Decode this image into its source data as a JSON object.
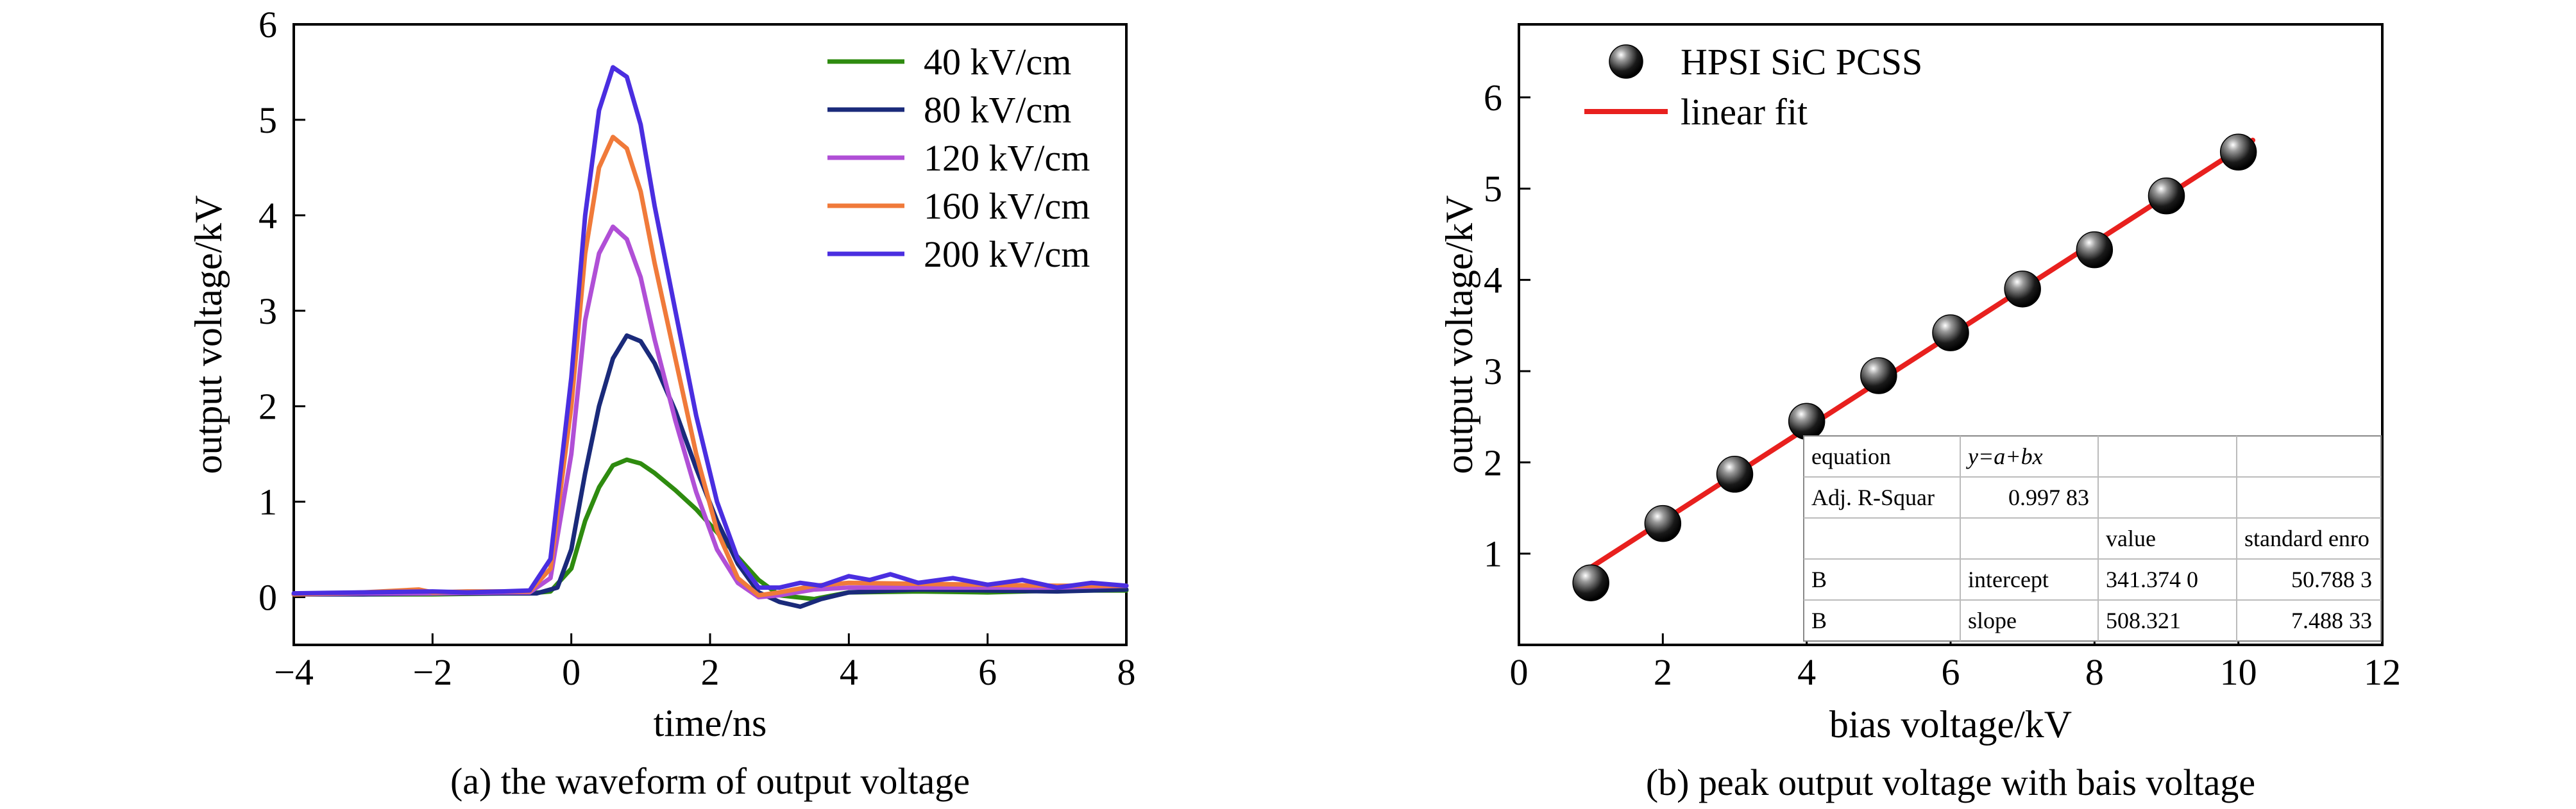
{
  "chart_data": [
    {
      "type": "line",
      "caption": "(a) the waveform of output voltage",
      "xlabel": "time/ns",
      "ylabel": "output voltage/kV",
      "xlim": [
        -4,
        8
      ],
      "ylim": [
        -0.5,
        6
      ],
      "xticks": [
        "−4",
        "−2",
        "0",
        "2",
        "4",
        "6",
        "8"
      ],
      "yticks": [
        "0",
        "1",
        "2",
        "3",
        "4",
        "5",
        "6"
      ],
      "xtick_values": [
        -4,
        -2,
        0,
        2,
        4,
        6,
        8
      ],
      "ytick_values": [
        0,
        1,
        2,
        3,
        4,
        5,
        6
      ],
      "grid": false,
      "legend_position": "top-right",
      "series": [
        {
          "name": "40 kV/cm",
          "color": "#2e8b0f",
          "x": [
            -4,
            -3,
            -2,
            -1,
            -0.6,
            -0.3,
            0,
            0.2,
            0.4,
            0.6,
            0.8,
            1.0,
            1.2,
            1.5,
            1.8,
            2.1,
            2.4,
            2.7,
            3.0,
            3.5,
            4,
            5,
            6,
            7,
            8
          ],
          "y": [
            0.03,
            0.03,
            0.03,
            0.04,
            0.04,
            0.06,
            0.3,
            0.8,
            1.15,
            1.38,
            1.44,
            1.4,
            1.3,
            1.12,
            0.92,
            0.68,
            0.42,
            0.18,
            0.02,
            -0.02,
            0.05,
            0.06,
            0.05,
            0.07,
            0.07
          ]
        },
        {
          "name": "80 kV/cm",
          "color": "#1a2a7a",
          "x": [
            -4,
            -3,
            -2,
            -1,
            -0.5,
            -0.2,
            0,
            0.2,
            0.4,
            0.6,
            0.8,
            1.0,
            1.2,
            1.5,
            1.8,
            2.1,
            2.4,
            2.7,
            3.0,
            3.3,
            3.6,
            4,
            5,
            6,
            7,
            8
          ],
          "y": [
            0.03,
            0.03,
            0.04,
            0.04,
            0.04,
            0.1,
            0.5,
            1.3,
            2.0,
            2.5,
            2.74,
            2.68,
            2.45,
            1.95,
            1.35,
            0.8,
            0.35,
            0.05,
            -0.05,
            -0.1,
            -0.02,
            0.05,
            0.08,
            0.07,
            0.06,
            0.08
          ]
        },
        {
          "name": "120 kV/cm",
          "color": "#b04fd6",
          "x": [
            -4,
            -3,
            -2,
            -1,
            -0.6,
            -0.3,
            0,
            0.2,
            0.4,
            0.6,
            0.8,
            1.0,
            1.2,
            1.5,
            1.8,
            2.1,
            2.4,
            2.7,
            3.0,
            3.5,
            4,
            5,
            6,
            7,
            8
          ],
          "y": [
            0.03,
            0.04,
            0.04,
            0.05,
            0.05,
            0.2,
            1.5,
            2.9,
            3.6,
            3.88,
            3.75,
            3.35,
            2.7,
            1.85,
            1.1,
            0.5,
            0.15,
            0.0,
            0.02,
            0.08,
            0.1,
            0.1,
            0.1,
            0.1,
            0.12
          ]
        },
        {
          "name": "160 kV/cm",
          "color": "#f07a3a",
          "x": [
            -4,
            -3,
            -2.2,
            -2,
            -1.5,
            -1,
            -0.6,
            -0.3,
            0,
            0.2,
            0.4,
            0.6,
            0.8,
            1.0,
            1.2,
            1.5,
            1.8,
            2.1,
            2.4,
            2.7,
            3.0,
            3.5,
            4,
            5,
            6,
            7,
            8
          ],
          "y": [
            0.03,
            0.05,
            0.08,
            0.05,
            0.06,
            0.06,
            0.06,
            0.3,
            2.0,
            3.6,
            4.5,
            4.82,
            4.7,
            4.25,
            3.5,
            2.5,
            1.5,
            0.7,
            0.2,
            0.02,
            0.05,
            0.12,
            0.15,
            0.14,
            0.13,
            0.12,
            0.12
          ]
        },
        {
          "name": "200 kV/cm",
          "color": "#4a2ee0",
          "x": [
            -4,
            -3,
            -2,
            -1.5,
            -1,
            -0.6,
            -0.3,
            0,
            0.2,
            0.4,
            0.6,
            0.8,
            1.0,
            1.2,
            1.5,
            1.8,
            2.1,
            2.4,
            2.7,
            3.0,
            3.3,
            3.6,
            4.0,
            4.3,
            4.6,
            5.0,
            5.5,
            6.0,
            6.5,
            7.0,
            7.5,
            8
          ],
          "y": [
            0.04,
            0.05,
            0.06,
            0.05,
            0.06,
            0.07,
            0.4,
            2.3,
            4.0,
            5.1,
            5.55,
            5.45,
            4.95,
            4.1,
            3.0,
            1.9,
            1.0,
            0.4,
            0.1,
            0.1,
            0.15,
            0.12,
            0.22,
            0.18,
            0.24,
            0.15,
            0.2,
            0.13,
            0.18,
            0.1,
            0.15,
            0.12
          ]
        }
      ]
    },
    {
      "type": "scatter",
      "caption": "(b) peak output voltage with bais voltage",
      "xlabel": "bias voltage/kV",
      "ylabel": "output voltage/kV",
      "xlim": [
        0,
        12
      ],
      "ylim": [
        0,
        6.8
      ],
      "xticks": [
        "0",
        "2",
        "4",
        "6",
        "8",
        "10",
        "12"
      ],
      "yticks": [
        "1",
        "2",
        "3",
        "4",
        "5",
        "6"
      ],
      "xtick_values": [
        0,
        2,
        4,
        6,
        8,
        10,
        12
      ],
      "ytick_values": [
        1,
        2,
        3,
        4,
        5,
        6
      ],
      "grid": false,
      "legend_position": "top-left",
      "series": [
        {
          "name": "HPSI SiC PCSS",
          "color": "#222222",
          "x": [
            1,
            2,
            3,
            4,
            5,
            6,
            7,
            8,
            9,
            10
          ],
          "y": [
            0.68,
            1.33,
            1.87,
            2.45,
            2.95,
            3.42,
            3.9,
            4.33,
            4.92,
            5.4
          ]
        },
        {
          "name": "linear fit",
          "color": "#e8201e",
          "x": [
            1,
            10.2
          ],
          "y": [
            0.85,
            5.53
          ]
        }
      ],
      "fit_table": {
        "rows": [
          [
            "equation",
            "y=a+bx",
            "",
            ""
          ],
          [
            "Adj. R-Squar",
            "0.997 83",
            "",
            ""
          ],
          [
            "",
            "",
            "value",
            "standard enro"
          ],
          [
            "B",
            "intercept",
            "341.374 0",
            "50.788 3"
          ],
          [
            "B",
            "slope",
            "508.321",
            "7.488 33"
          ]
        ]
      }
    }
  ]
}
